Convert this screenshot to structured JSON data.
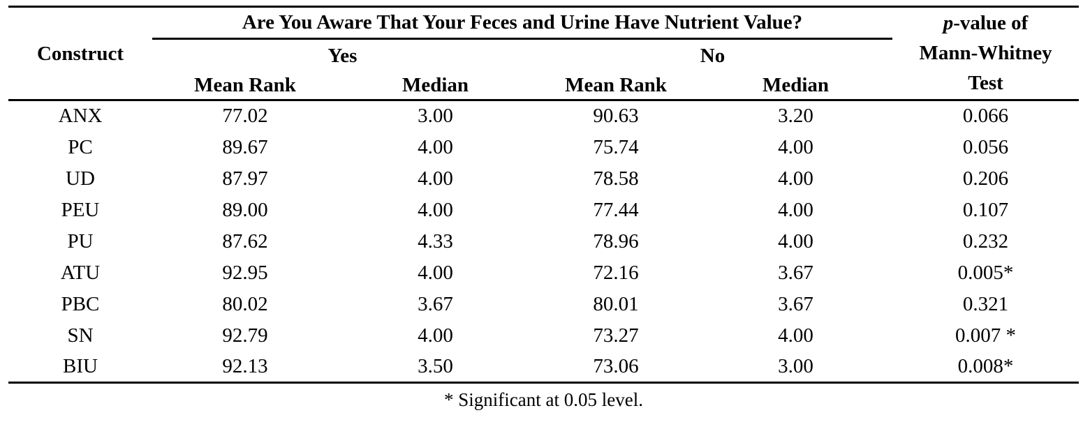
{
  "table": {
    "construct_header": "Construct",
    "group_header": "Are You Aware That Your Feces and Urine Have Nutrient Value?",
    "yes_label": "Yes",
    "no_label": "No",
    "sub_headers": {
      "mean_rank": "Mean Rank",
      "median": "Median"
    },
    "p_value_header": {
      "line1_italic": "p",
      "line1_rest": "-value of",
      "line2": "Mann-Whitney",
      "line3": "Test"
    },
    "rows": [
      {
        "construct": "ANX",
        "yes_mean_rank": "77.02",
        "yes_median": "3.00",
        "no_mean_rank": "90.63",
        "no_median": "3.20",
        "p_value": "0.066"
      },
      {
        "construct": "PC",
        "yes_mean_rank": "89.67",
        "yes_median": "4.00",
        "no_mean_rank": "75.74",
        "no_median": "4.00",
        "p_value": "0.056"
      },
      {
        "construct": "UD",
        "yes_mean_rank": "87.97",
        "yes_median": "4.00",
        "no_mean_rank": "78.58",
        "no_median": "4.00",
        "p_value": "0.206"
      },
      {
        "construct": "PEU",
        "yes_mean_rank": "89.00",
        "yes_median": "4.00",
        "no_mean_rank": "77.44",
        "no_median": "4.00",
        "p_value": "0.107"
      },
      {
        "construct": "PU",
        "yes_mean_rank": "87.62",
        "yes_median": "4.33",
        "no_mean_rank": "78.96",
        "no_median": "4.00",
        "p_value": "0.232"
      },
      {
        "construct": "ATU",
        "yes_mean_rank": "92.95",
        "yes_median": "4.00",
        "no_mean_rank": "72.16",
        "no_median": "3.67",
        "p_value": "0.005*"
      },
      {
        "construct": "PBC",
        "yes_mean_rank": "80.02",
        "yes_median": "3.67",
        "no_mean_rank": "80.01",
        "no_median": "3.67",
        "p_value": "0.321"
      },
      {
        "construct": "SN",
        "yes_mean_rank": "92.79",
        "yes_median": "4.00",
        "no_mean_rank": "73.27",
        "no_median": "4.00",
        "p_value": "0.007 *"
      },
      {
        "construct": "BIU",
        "yes_mean_rank": "92.13",
        "yes_median": "3.50",
        "no_mean_rank": "73.06",
        "no_median": "3.00",
        "p_value": "0.008*"
      }
    ],
    "footnote": "* Significant at 0.05 level."
  },
  "colors": {
    "text": "#000000",
    "background": "#ffffff",
    "rule": "#000000"
  }
}
